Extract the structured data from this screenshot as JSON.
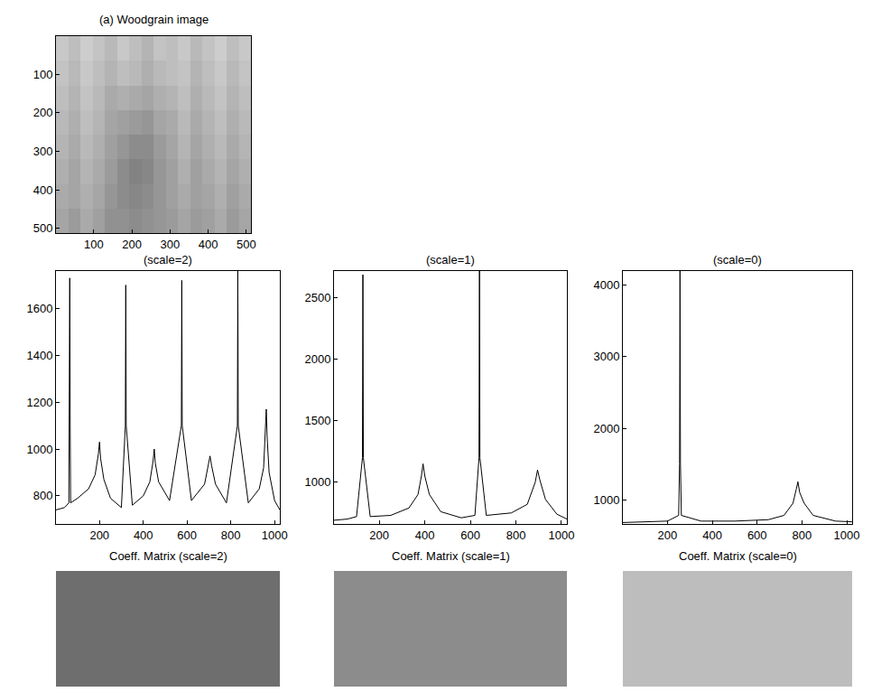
{
  "chart_data": [
    {
      "type": "heatmap",
      "title": "(a) Woodgrain image",
      "xlim": [
        1,
        512
      ],
      "ylim": [
        512,
        1
      ],
      "xticks": [
        100,
        200,
        300,
        400,
        500
      ],
      "yticks": [
        100,
        200,
        300,
        400,
        500
      ],
      "zlim": [
        0,
        255
      ],
      "cells": [
        [
          200,
          190,
          205,
          195,
          185,
          200,
          190,
          180,
          195,
          190,
          200,
          185,
          195,
          205,
          190,
          200
        ],
        [
          195,
          185,
          200,
          190,
          180,
          190,
          185,
          175,
          185,
          190,
          195,
          180,
          190,
          200,
          185,
          195
        ],
        [
          190,
          180,
          195,
          185,
          170,
          175,
          170,
          165,
          175,
          180,
          190,
          175,
          185,
          195,
          180,
          190
        ],
        [
          185,
          175,
          190,
          180,
          165,
          160,
          155,
          150,
          165,
          170,
          185,
          170,
          180,
          190,
          175,
          185
        ],
        [
          180,
          170,
          185,
          175,
          160,
          150,
          140,
          140,
          155,
          165,
          180,
          165,
          175,
          185,
          170,
          180
        ],
        [
          175,
          165,
          180,
          170,
          155,
          140,
          130,
          135,
          150,
          160,
          175,
          160,
          170,
          180,
          165,
          175
        ],
        [
          170,
          165,
          175,
          165,
          150,
          140,
          135,
          140,
          150,
          160,
          170,
          160,
          165,
          175,
          160,
          170
        ],
        [
          165,
          155,
          170,
          160,
          145,
          145,
          140,
          145,
          150,
          155,
          165,
          155,
          160,
          170,
          155,
          165
        ]
      ]
    },
    {
      "type": "line",
      "title": "(scale=2)",
      "color": "#000000",
      "xlim": [
        1,
        1024
      ],
      "ylim": [
        680,
        1760
      ],
      "xticks": [
        200,
        400,
        600,
        800,
        1000
      ],
      "yticks": [
        800,
        1000,
        1200,
        1400,
        1600
      ],
      "x": [
        1,
        40,
        60,
        62,
        64,
        66,
        68,
        100,
        150,
        180,
        195,
        200,
        205,
        220,
        250,
        300,
        318,
        320,
        322,
        350,
        400,
        430,
        445,
        450,
        455,
        470,
        520,
        574,
        576,
        578,
        620,
        680,
        700,
        705,
        712,
        730,
        780,
        830,
        832,
        834,
        880,
        930,
        950,
        958,
        962,
        966,
        975,
        1000,
        1024
      ],
      "values": [
        740,
        750,
        770,
        1100,
        1730,
        1100,
        770,
        790,
        830,
        890,
        980,
        1030,
        960,
        870,
        790,
        750,
        1100,
        1700,
        1100,
        760,
        800,
        860,
        950,
        1000,
        940,
        860,
        780,
        1100,
        1720,
        1100,
        780,
        850,
        940,
        970,
        930,
        850,
        770,
        1100,
        1760,
        1100,
        770,
        830,
        920,
        1080,
        1170,
        1050,
        900,
        780,
        740
      ]
    },
    {
      "type": "line",
      "title": "(scale=1)",
      "color": "#000000",
      "xlim": [
        1,
        1024
      ],
      "ylim": [
        660,
        2720
      ],
      "xticks": [
        200,
        400,
        600,
        800,
        1000
      ],
      "yticks": [
        1000,
        1500,
        2000,
        2500
      ],
      "x": [
        1,
        60,
        100,
        126,
        128,
        130,
        160,
        250,
        330,
        370,
        385,
        392,
        400,
        420,
        470,
        560,
        620,
        638,
        640,
        642,
        670,
        780,
        850,
        885,
        895,
        905,
        930,
        980,
        1024
      ],
      "values": [
        690,
        700,
        720,
        1200,
        2690,
        1200,
        720,
        730,
        790,
        900,
        1050,
        1150,
        1050,
        900,
        760,
        710,
        730,
        1200,
        2720,
        1200,
        730,
        750,
        820,
        1000,
        1100,
        1020,
        860,
        740,
        700
      ]
    },
    {
      "type": "line",
      "title": "(scale=0)",
      "color": "#000000",
      "xlim": [
        1,
        1024
      ],
      "ylim": [
        660,
        4200
      ],
      "xticks": [
        200,
        400,
        600,
        800,
        1000
      ],
      "yticks": [
        1000,
        2000,
        3000,
        4000
      ],
      "x": [
        1,
        100,
        200,
        250,
        254,
        256,
        258,
        262,
        350,
        500,
        650,
        720,
        760,
        775,
        782,
        790,
        810,
        850,
        950,
        1024
      ],
      "values": [
        680,
        690,
        700,
        780,
        1500,
        4200,
        1500,
        780,
        700,
        700,
        720,
        780,
        950,
        1150,
        1250,
        1100,
        950,
        780,
        700,
        690
      ]
    },
    {
      "type": "image",
      "title": "Coeff. Matrix (scale=2)",
      "color": "#6e6e6e"
    },
    {
      "type": "image",
      "title": "Coeff. Matrix (scale=1)",
      "color": "#8c8c8c"
    },
    {
      "type": "image",
      "title": "Coeff. Matrix (scale=0)",
      "color": "#bdbdbd"
    }
  ]
}
